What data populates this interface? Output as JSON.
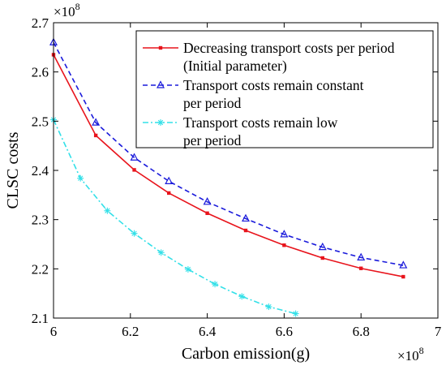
{
  "chart_data": {
    "type": "line",
    "xlabel": "Carbon emission(g)",
    "ylabel": "CLSC costs",
    "x_multiplier": "×10",
    "x_multiplier_exp": "8",
    "y_multiplier": "×10",
    "y_multiplier_exp": "8",
    "xlim": [
      6,
      7
    ],
    "ylim": [
      2.1,
      2.7
    ],
    "xticks": [
      6,
      6.2,
      6.4,
      6.6,
      6.8,
      7
    ],
    "xtick_labels": [
      "6",
      "6.2",
      "6.4",
      "6.6",
      "6.8",
      "7"
    ],
    "yticks": [
      2.1,
      2.2,
      2.3,
      2.4,
      2.5,
      2.6,
      2.7
    ],
    "ytick_labels": [
      "2.1",
      "2.2",
      "2.3",
      "2.4",
      "2.5",
      "2.6",
      "2.7"
    ],
    "grid": false,
    "legend_position": "top-right",
    "series": [
      {
        "name_lines": [
          "Decreasing transport costs per period",
          "(Initial parameter)"
        ],
        "color": "#e8141c",
        "line_style": "solid",
        "marker": "square",
        "x": [
          6.0,
          6.11,
          6.21,
          6.3,
          6.4,
          6.5,
          6.6,
          6.7,
          6.8,
          6.91
        ],
        "y": [
          2.635,
          2.471,
          2.401,
          2.354,
          2.313,
          2.278,
          2.248,
          2.222,
          2.201,
          2.184
        ]
      },
      {
        "name_lines": [
          "Transport costs remain constant",
          "per period"
        ],
        "color": "#1a1adb",
        "line_style": "dashed",
        "marker": "triangle",
        "x": [
          6.0,
          6.11,
          6.21,
          6.3,
          6.4,
          6.5,
          6.6,
          6.7,
          6.8,
          6.91
        ],
        "y": [
          2.66,
          2.497,
          2.426,
          2.378,
          2.336,
          2.302,
          2.27,
          2.244,
          2.223,
          2.207
        ]
      },
      {
        "name_lines": [
          "Transport costs remain low",
          " per period"
        ],
        "color": "#33e0e8",
        "line_style": "dashdot",
        "marker": "star",
        "x": [
          6.0,
          6.07,
          6.14,
          6.21,
          6.28,
          6.35,
          6.42,
          6.49,
          6.56,
          6.63
        ],
        "y": [
          2.503,
          2.384,
          2.318,
          2.272,
          2.233,
          2.199,
          2.169,
          2.144,
          2.123,
          2.109
        ]
      }
    ]
  }
}
